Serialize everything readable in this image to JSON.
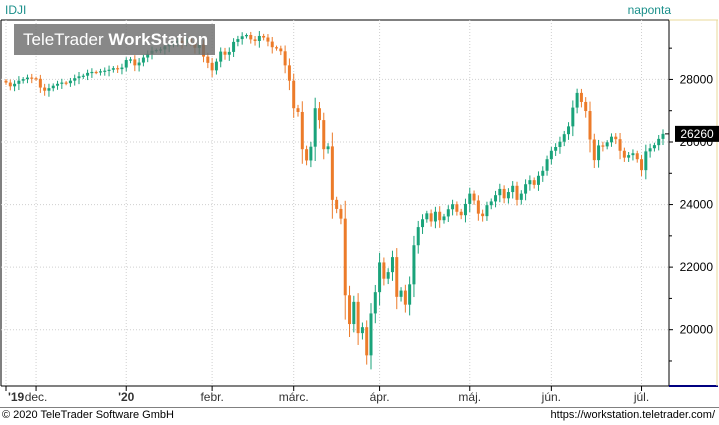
{
  "symbol": "IDJI",
  "interval": "naponta",
  "watermark": {
    "part1": "TeleTrader",
    "part2": "WorkStation"
  },
  "footer": {
    "copyright": "© 2020 TeleTrader Software GmbH",
    "url": "https://workstation.teletrader.com/"
  },
  "colors": {
    "up": "#1aa37a",
    "down": "#ec7b2a",
    "label_bg": "#000000",
    "label_fg": "#ffffff",
    "axis_accent": "#000080",
    "text_accent": "#1a8f8a"
  },
  "chart_data": {
    "type": "candlestick",
    "ylim": [
      18200,
      29900
    ],
    "y_ticks": [
      20000,
      22000,
      24000,
      26000,
      28000
    ],
    "y_tick_labels": [
      "20000",
      "22000",
      "24000",
      "26000",
      "28000"
    ],
    "x_ticks": [
      {
        "label": "'19",
        "index": 0
      },
      {
        "label": "dec.",
        "index": 7
      },
      {
        "label": "'20",
        "index": 28
      },
      {
        "label": "febr.",
        "index": 48
      },
      {
        "label": "márc.",
        "index": 67
      },
      {
        "label": "ápr.",
        "index": 87
      },
      {
        "label": "máj.",
        "index": 108
      },
      {
        "label": "jún.",
        "index": 127
      },
      {
        "label": "júl.",
        "index": 148
      }
    ],
    "last_value": "26260",
    "last": 26260,
    "grid": true,
    "closes": [
      27900,
      27780,
      27860,
      27960,
      28010,
      28060,
      28040,
      28020,
      27740,
      27640,
      27720,
      27800,
      27860,
      27900,
      27880,
      27960,
      28040,
      28100,
      28120,
      28210,
      28240,
      28230,
      28260,
      28280,
      28310,
      28360,
      28330,
      28380,
      28620,
      28640,
      28450,
      28540,
      28700,
      28820,
      28920,
      28940,
      28960,
      29060,
      29120,
      29180,
      29230,
      29160,
      29300,
      29200,
      29010,
      29120,
      28730,
      28530,
      28290,
      28570,
      28890,
      28790,
      28880,
      29200,
      29290,
      29380,
      29420,
      29280,
      29230,
      29390,
      29340,
      29210,
      29030,
      28990,
      28900,
      28450,
      27960,
      27080,
      26960,
      25770,
      25410,
      25850,
      27080,
      26700,
      25770,
      25860,
      24150,
      23860,
      23550,
      21100,
      20180,
      20890,
      19890,
      20080,
      19180,
      20520,
      21200,
      22150,
      21630,
      21840,
      22320,
      21050,
      21250,
      20800,
      21450,
      22700,
      23280,
      23530,
      23720,
      23460,
      23770,
      23500,
      23620,
      23850,
      24010,
      23770,
      23660,
      24020,
      24350,
      24130,
      23710,
      23630,
      23980,
      24100,
      24300,
      24500,
      24200,
      24400,
      24600,
      24150,
      24350,
      24650,
      24780,
      24630,
      24920,
      25080,
      25450,
      25720,
      25840,
      26010,
      26250,
      26500,
      27100,
      27570,
      27280,
      26990,
      26080,
      25420,
      25890,
      25860,
      25990,
      26170,
      26090,
      25720,
      25500,
      25580,
      25640,
      25450,
      25100,
      25700,
      25800,
      25900,
      26100,
      26260
    ]
  }
}
